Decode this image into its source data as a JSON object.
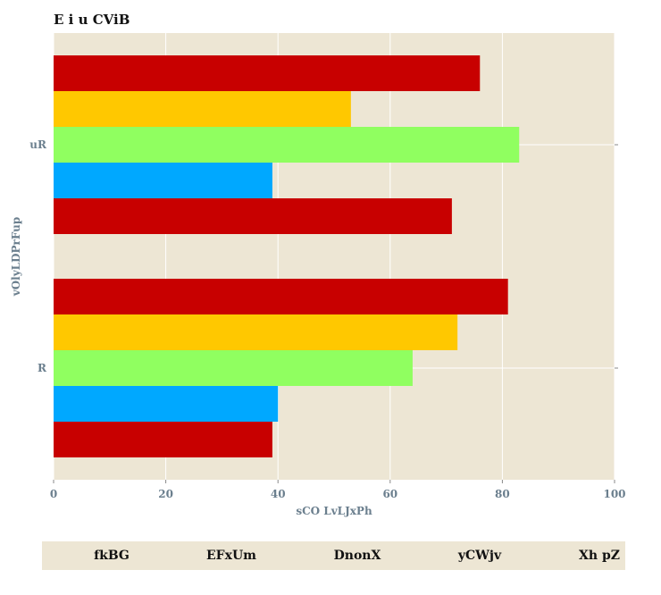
{
  "chart_data": {
    "type": "bar",
    "orientation": "horizontal",
    "title": "E i u  CViB",
    "xlabel": "sCO LvLJxPh",
    "ylabel": "vOlyLDPrFup",
    "xlim": [
      0,
      100
    ],
    "xticks": [
      "0",
      "20",
      "40",
      "60",
      "80",
      "100"
    ],
    "categories": [
      "R",
      "uR"
    ],
    "grid": true,
    "legend_position": "bottom",
    "series": [
      {
        "name": "fkBG",
        "color": "#c80000",
        "values": [
          39,
          71
        ]
      },
      {
        "name": "EFxUm",
        "color": "#00a8ff",
        "values": [
          40,
          39
        ]
      },
      {
        "name": "DnonX",
        "color": "#90ff60",
        "values": [
          64,
          83
        ]
      },
      {
        "name": "yCWjv",
        "color": "#ffc800",
        "values": [
          72,
          53
        ]
      },
      {
        "name": "Xh pZ",
        "color": "#c80000",
        "values": [
          81,
          76
        ]
      }
    ]
  }
}
